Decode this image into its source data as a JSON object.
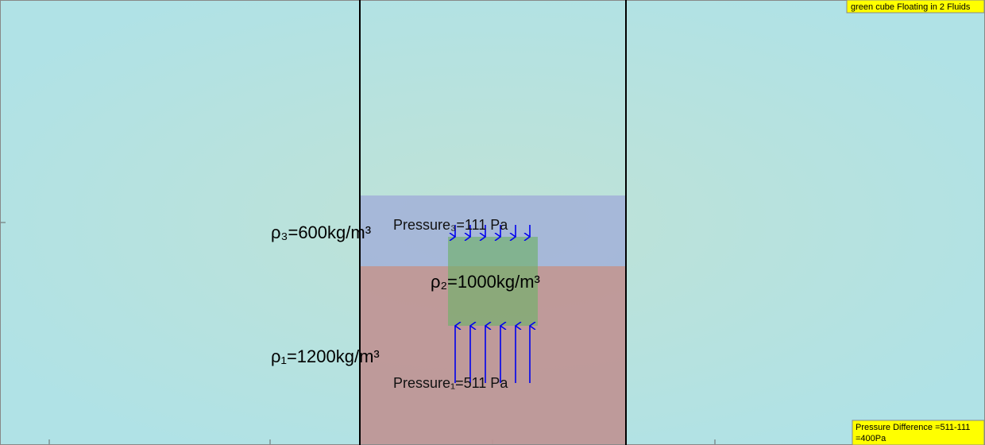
{
  "header": {
    "title": "green cube Floating in 2 Fluids"
  },
  "fluids": {
    "top_density": "ρ₃=600kg/m³",
    "cube_density": "ρ₂=1000kg/m³",
    "bottom_density": "ρ₁=1200kg/m³"
  },
  "pressures": {
    "top": "Pressure₃=111 Pa",
    "bottom": "Pressure₁=511 Pa"
  },
  "result": {
    "line1": "Pressure Difference =511-111",
    "line2": "=400Pa"
  }
}
